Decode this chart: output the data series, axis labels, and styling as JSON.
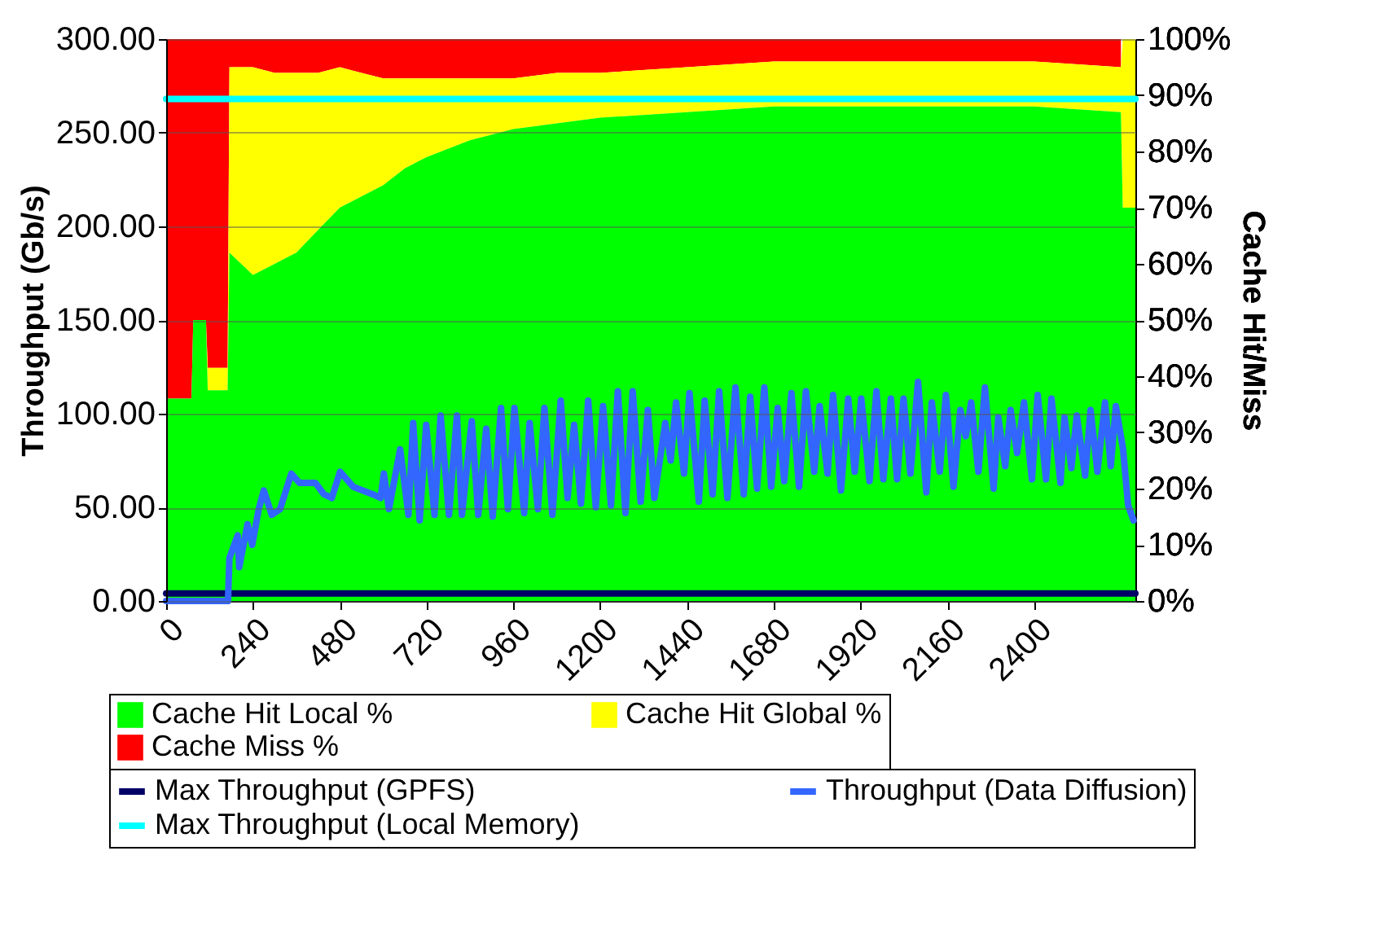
{
  "chart_data": {
    "type": "area",
    "stacked": true,
    "ylabel": "Throughput (Gb/s)",
    "y2label": "Cache Hit/Miss",
    "grid": "y",
    "legend": "bottom",
    "xlim": [
      0,
      2680
    ],
    "xticks": [
      0,
      240,
      480,
      720,
      960,
      1200,
      1440,
      1680,
      1920,
      2160,
      2400
    ],
    "ylim": [
      0,
      300
    ],
    "yticks": [
      {
        "value": 0,
        "label": "0.00"
      },
      {
        "value": 50,
        "label": "50.00"
      },
      {
        "value": 100,
        "label": "100.00"
      },
      {
        "value": 150,
        "label": "150.00"
      },
      {
        "value": 200,
        "label": "200.00"
      },
      {
        "value": 250,
        "label": "250.00"
      },
      {
        "value": 300,
        "label": "300.00"
      }
    ],
    "y2lim": [
      0,
      100
    ],
    "y2ticks": [
      {
        "value": 0,
        "label": "0%"
      },
      {
        "value": 10,
        "label": "10%"
      },
      {
        "value": 20,
        "label": "20%"
      },
      {
        "value": 30,
        "label": "30%"
      },
      {
        "value": 40,
        "label": "40%"
      },
      {
        "value": 50,
        "label": "50%"
      },
      {
        "value": 60,
        "label": "60%"
      },
      {
        "value": 70,
        "label": "70%"
      },
      {
        "value": 80,
        "label": "80%"
      },
      {
        "value": 90,
        "label": "90%"
      },
      {
        "value": 100,
        "label": "100%"
      }
    ],
    "x": [
      0,
      70,
      75,
      110,
      115,
      170,
      175,
      240,
      300,
      360,
      420,
      480,
      540,
      600,
      660,
      720,
      840,
      960,
      1080,
      1200,
      1440,
      1680,
      1920,
      2160,
      2400,
      2640,
      2645,
      2680
    ],
    "series": [
      {
        "name": "Cache Hit Local %",
        "axis": "y2",
        "color": "#00ff00",
        "values": [
          36,
          36,
          50,
          50,
          37.5,
          37.5,
          62,
          58,
          60,
          62,
          66,
          70,
          72,
          74,
          77,
          79,
          82,
          84,
          85,
          86,
          87,
          88,
          88,
          88,
          88,
          87,
          70,
          70
        ]
      },
      {
        "name": "Cache Hit Global %",
        "axis": "y2",
        "color": "#ffff00",
        "values": [
          0,
          0,
          0,
          0,
          4,
          4,
          33,
          37,
          34,
          32,
          28,
          25,
          22,
          19,
          16,
          14,
          11,
          9,
          9,
          8,
          8,
          8,
          8,
          8,
          8,
          8,
          30,
          30
        ]
      },
      {
        "name": "Cache Miss %",
        "axis": "y2",
        "color": "#ff0000",
        "values": [
          64,
          64,
          50,
          50,
          58.5,
          58.5,
          5,
          5,
          6,
          6,
          6,
          5,
          6,
          7,
          7,
          7,
          7,
          7,
          6,
          6,
          5,
          4,
          4,
          4,
          4,
          5,
          null,
          null
        ]
      },
      {
        "name": "Max Throughput (GPFS)",
        "type": "line",
        "color": "#000066",
        "x": [
          0,
          2680
        ],
        "values": [
          4,
          4
        ]
      },
      {
        "name": "Throughput (Data Diffusion)",
        "type": "line",
        "color": "#3366ff",
        "x": [
          0,
          171,
          175,
          198,
          202,
          225,
          238,
          256,
          270,
          292,
          315,
          346,
          369,
          413,
          436,
          458,
          481,
          517,
          571,
          593,
          602,
          616,
          647,
          670,
          683,
          701,
          719,
          742,
          759,
          782,
          804,
          818,
          845,
          863,
          885,
          903,
          926,
          945,
          963,
          990,
          1005,
          1028,
          1046,
          1068,
          1091,
          1110,
          1128,
          1147,
          1167,
          1188,
          1208,
          1230,
          1249,
          1270,
          1290,
          1312,
          1332,
          1350,
          1380,
          1395,
          1410,
          1432,
          1447,
          1473,
          1489,
          1511,
          1529,
          1552,
          1574,
          1597,
          1615,
          1634,
          1654,
          1673,
          1691,
          1709,
          1729,
          1750,
          1769,
          1792,
          1807,
          1829,
          1844,
          1866,
          1886,
          1904,
          1922,
          1945,
          1964,
          1983,
          2004,
          2021,
          2039,
          2058,
          2079,
          2102,
          2117,
          2139,
          2156,
          2177,
          2196,
          2211,
          2226,
          2246,
          2264,
          2288,
          2301,
          2320,
          2335,
          2353,
          2372,
          2394,
          2410,
          2433,
          2448,
          2473,
          2484,
          2503,
          2518,
          2541,
          2556,
          2575,
          2596,
          2612,
          2626,
          2646,
          2660,
          2675
        ],
        "values": [
          0,
          0,
          23,
          35,
          18,
          41,
          30,
          49,
          59,
          46,
          49,
          68,
          63,
          63,
          57,
          55,
          69,
          61,
          57,
          55,
          68,
          49,
          81,
          46,
          95,
          43,
          94,
          46,
          99,
          46,
          99,
          46,
          96,
          46,
          92,
          45,
          103,
          49,
          103,
          47,
          95,
          49,
          103,
          46,
          107,
          55,
          94,
          52,
          107,
          50,
          104,
          51,
          112,
          47,
          112,
          53,
          102,
          55,
          95,
          75,
          106,
          68,
          111,
          53,
          107,
          57,
          112,
          55,
          114,
          57,
          109,
          60,
          114,
          61,
          103,
          64,
          111,
          61,
          112,
          69,
          104,
          68,
          110,
          59,
          108,
          69,
          108,
          64,
          112,
          65,
          108,
          65,
          108,
          68,
          117,
          58,
          106,
          69,
          110,
          61,
          102,
          88,
          106,
          69,
          114,
          60,
          98,
          72,
          102,
          79,
          106,
          65,
          110,
          65,
          108,
          63,
          98,
          71,
          99,
          67,
          102,
          69,
          106,
          72,
          104,
          81,
          51,
          43
        ]
      },
      {
        "name": "Max Throughput (Local Memory)",
        "type": "line",
        "color": "#00ffff",
        "x": [
          0,
          2680
        ],
        "values": [
          268,
          268
        ]
      }
    ]
  }
}
